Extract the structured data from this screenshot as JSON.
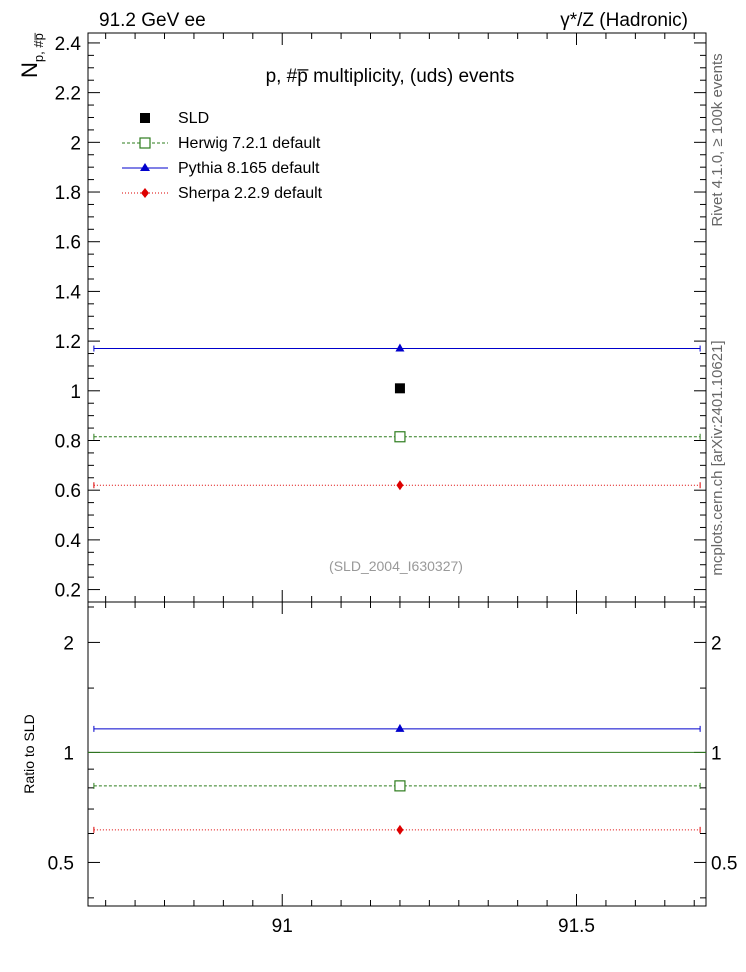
{
  "header": {
    "left": "91.2 GeV ee",
    "right": "γ*/Z (Hadronic)"
  },
  "side_labels": {
    "rivet": "Rivet 4.1.0, ≥ 100k events",
    "mcplots": "mcplots.cern.ch [arXiv:2401.10621]"
  },
  "colors": {
    "data": "#000000",
    "herwig": "#2e7d1e",
    "pythia": "#0000cc",
    "sherpa": "#dd0000"
  },
  "chart_data": [
    {
      "type": "scatter",
      "title": "p, #p̅ multiplicity, (uds) events",
      "ylabel": "N",
      "ylabel_sub": "p, #p̅",
      "watermark": "(SLD_2004_I630327)",
      "xlim": [
        90.67,
        91.72
      ],
      "ylim": [
        0.15,
        2.44
      ],
      "yticks": [
        0.2,
        0.4,
        0.6,
        0.8,
        1,
        1.2,
        1.4,
        1.6,
        1.8,
        2,
        2.2,
        2.4
      ],
      "ytick_labels": [
        "0.2",
        "0.4",
        "0.6",
        "0.8",
        "1",
        "1.2",
        "1.4",
        "1.6",
        "1.8",
        "2",
        "2.2",
        "2.4"
      ],
      "legend": [
        {
          "key": "data",
          "label": "SLD",
          "marker": "square-filled",
          "line": "none"
        },
        {
          "key": "herwig",
          "label": "Herwig 7.2.1 default",
          "marker": "square-open",
          "line": "dashed"
        },
        {
          "key": "pythia",
          "label": "Pythia 8.165 default",
          "marker": "triangle",
          "line": "solid"
        },
        {
          "key": "sherpa",
          "label": "Sherpa 2.2.9 default",
          "marker": "diamond",
          "line": "dotted"
        }
      ],
      "series": [
        {
          "key": "data",
          "name": "SLD",
          "x": 91.2,
          "y": 1.01,
          "xlow": 91.2,
          "xhigh": 91.2
        },
        {
          "key": "herwig",
          "name": "Herwig 7.2.1 default",
          "x": 91.2,
          "y": 0.815,
          "xlow": 90.68,
          "xhigh": 91.71
        },
        {
          "key": "pythia",
          "name": "Pythia 8.165 default",
          "x": 91.2,
          "y": 1.17,
          "xlow": 90.68,
          "xhigh": 91.71
        },
        {
          "key": "sherpa",
          "name": "Sherpa 2.2.9 default",
          "x": 91.2,
          "y": 0.62,
          "xlow": 90.68,
          "xhigh": 91.71
        }
      ]
    },
    {
      "type": "scatter",
      "ylabel": "Ratio to SLD",
      "xlim": [
        90.67,
        91.72
      ],
      "ylim": [
        0.38,
        2.58
      ],
      "yscale": "log",
      "yticks": [
        0.5,
        1,
        2
      ],
      "ytick_labels": [
        "0.5",
        "1",
        "2"
      ],
      "xticks": [
        91,
        91.5
      ],
      "xtick_labels": [
        "91",
        "91.5"
      ],
      "reference": 1.0,
      "series": [
        {
          "key": "herwig",
          "name": "Herwig 7.2.1 default",
          "x": 91.2,
          "y": 0.81,
          "xlow": 90.68,
          "xhigh": 91.71
        },
        {
          "key": "pythia",
          "name": "Pythia 8.165 default",
          "x": 91.2,
          "y": 1.16,
          "xlow": 90.68,
          "xhigh": 91.71
        },
        {
          "key": "sherpa",
          "name": "Sherpa 2.2.9 default",
          "x": 91.2,
          "y": 0.614,
          "xlow": 90.68,
          "xhigh": 91.71
        }
      ]
    }
  ]
}
